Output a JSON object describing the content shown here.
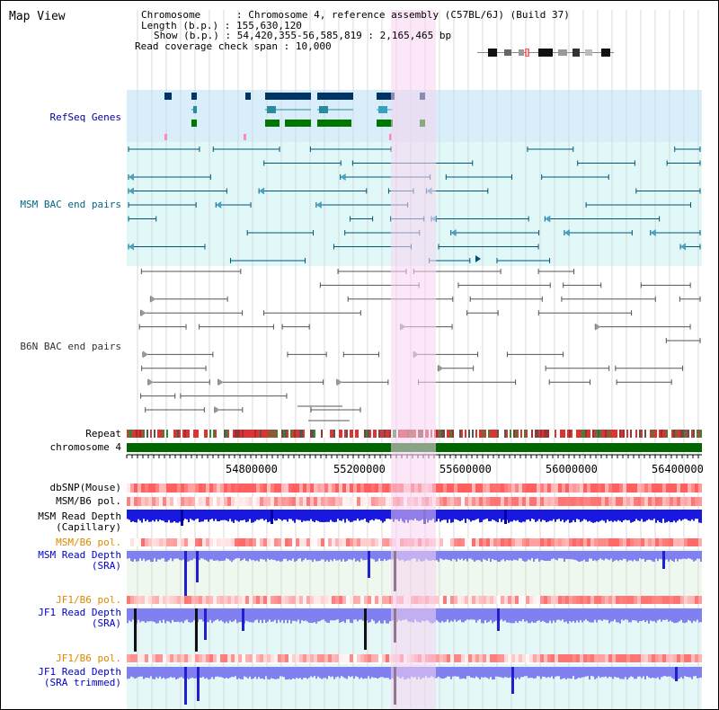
{
  "title": "Map View",
  "header": {
    "chromosome_label": "Chromosome",
    "chromosome_value": "Chromosome 4, reference assembly (C57BL/6J) (Build 37)",
    "length_label": "Length (b.p.)",
    "length_value": "155,630,120",
    "show_label": "Show (b.p.)",
    "show_value": "54,420,355-56,585,819 : 2,165,465 bp",
    "coverage_label": "Read coverage check span",
    "coverage_value": "10,000"
  },
  "tracks": {
    "refseq": "RefSeq Genes",
    "msm_bac": "MSM BAC end pairs",
    "b6n_bac": "B6N BAC end pairs",
    "repeat": "Repeat",
    "chromosome": "chromosome 4",
    "dbsnp": "dbSNP(Mouse)",
    "msm_b6_pol_1": "MSM/B6 pol.",
    "msm_capillary_1": "MSM Read Depth",
    "msm_capillary_2": "(Capillary)",
    "msm_b6_pol_2": "MSM/B6 pol.",
    "msm_sra_1": "MSM Read Depth",
    "msm_sra_2": "(SRA)",
    "jf1_b6_pol_1": "JF1/B6 pol.",
    "jf1_sra_1": "JF1 Read Depth",
    "jf1_sra_2": "(SRA)",
    "jf1_b6_pol_2": "JF1/B6 pol.",
    "jf1_trim_1": "JF1 Read Depth",
    "jf1_trim_2": "(SRA trimmed)"
  },
  "axis": {
    "ticks": [
      "54800000",
      "55200000",
      "55600000",
      "56000000",
      "56400000"
    ]
  },
  "colors": {
    "refseq_bg": "#d8eefa",
    "msm_bg": "#e0f8f8",
    "highlight": "#f8d4f0",
    "chromosome": "#006600",
    "depth_blue": "#1818e0",
    "depth_light": "#8080f0"
  }
}
